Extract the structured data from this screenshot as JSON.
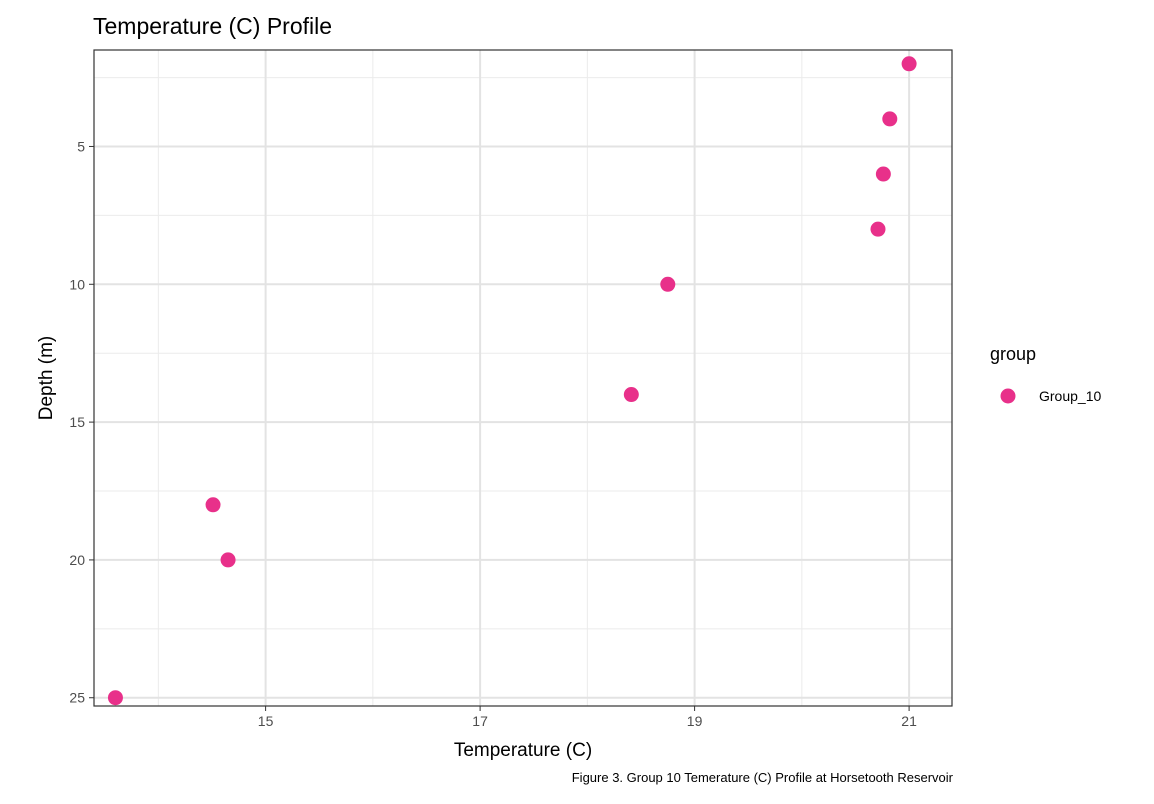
{
  "chart_data": {
    "type": "scatter",
    "title": "Temperature (C) Profile",
    "xlabel": "Temperature (C)",
    "ylabel": "Depth (m)",
    "caption": "Figure 3. Group 10 Temerature (C) Profile at Horsetooth Reservoir",
    "xlim": [
      13.4,
      21.4
    ],
    "ylim": [
      25.3,
      1.5
    ],
    "y_reversed": true,
    "x_ticks": [
      15,
      17,
      19,
      21
    ],
    "x_tick_labels": [
      "15",
      "17",
      "19",
      "21"
    ],
    "x_minor_ticks": [
      14,
      16,
      18,
      20
    ],
    "y_ticks": [
      5,
      10,
      15,
      20,
      25
    ],
    "y_tick_labels": [
      "5",
      "10",
      "15",
      "20",
      "25"
    ],
    "y_minor_ticks": [
      2.5,
      7.5,
      12.5,
      17.5,
      22.5
    ],
    "grid": true,
    "legend": {
      "title": "group",
      "position": "right"
    },
    "series": [
      {
        "name": "Group_10",
        "color": "#e8308a",
        "points": [
          {
            "x": 21.0,
            "y": 2
          },
          {
            "x": 20.82,
            "y": 4
          },
          {
            "x": 20.76,
            "y": 6
          },
          {
            "x": 20.71,
            "y": 8
          },
          {
            "x": 18.75,
            "y": 10
          },
          {
            "x": 18.41,
            "y": 14
          },
          {
            "x": 14.51,
            "y": 18
          },
          {
            "x": 14.65,
            "y": 20
          },
          {
            "x": 13.6,
            "y": 25
          }
        ]
      }
    ]
  }
}
